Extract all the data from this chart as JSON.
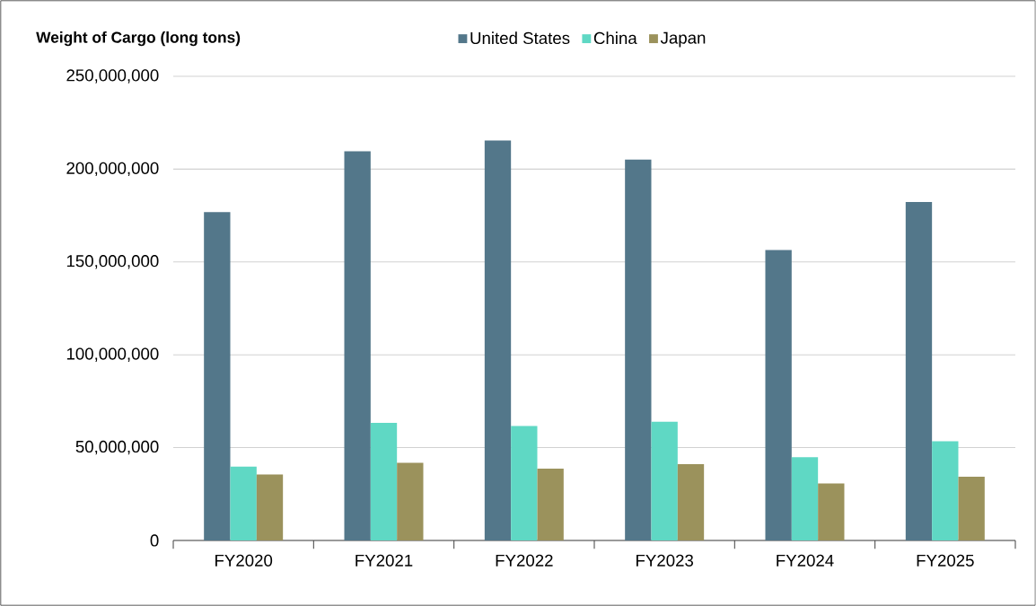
{
  "chart_data": {
    "type": "bar",
    "ylabel": "Weight of Cargo (long tons)",
    "categories": [
      "FY2020",
      "FY2021",
      "FY2022",
      "FY2023",
      "FY2024",
      "FY2025"
    ],
    "series": [
      {
        "name": "United States",
        "color": "#53778a",
        "values": [
          176800000,
          209600000,
          215400000,
          205200000,
          156400000,
          182300000
        ]
      },
      {
        "name": "China",
        "color": "#5fd8c4",
        "values": [
          39800000,
          63300000,
          61600000,
          64000000,
          44800000,
          53400000
        ]
      },
      {
        "name": "Japan",
        "color": "#9b925c",
        "values": [
          35500000,
          41800000,
          38700000,
          41100000,
          30700000,
          34300000
        ]
      }
    ],
    "ylim": [
      0,
      250000000
    ],
    "yticks": [
      0,
      {
        "value": 50000000,
        "label": "50,000,000"
      },
      {
        "value": 100000000,
        "label": "100,000,000"
      },
      {
        "value": 150000000,
        "label": "150,000,000"
      },
      {
        "value": 200000000,
        "label": "200,000,000"
      },
      {
        "value": 250000000,
        "label": "250,000,000"
      }
    ],
    "grid": "y",
    "legend": "top"
  }
}
